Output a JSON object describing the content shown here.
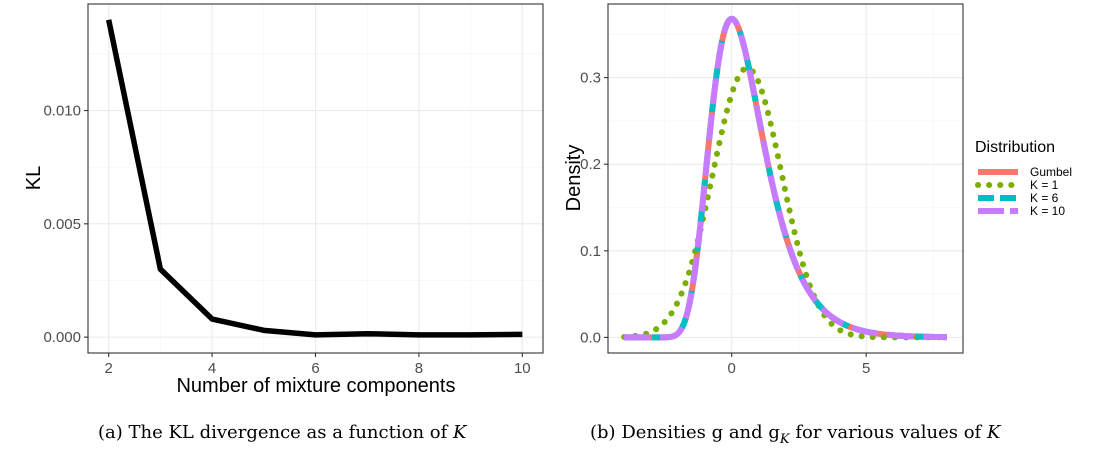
{
  "chart_data": [
    {
      "type": "line",
      "title": "",
      "xlabel": "Number of mixture components",
      "ylabel": "KL",
      "xlim": [
        1.6,
        10.4
      ],
      "ylim": [
        -0.0007,
        0.0147
      ],
      "x_ticks": [
        2,
        4,
        6,
        8,
        10
      ],
      "x_tick_labels": [
        "2",
        "4",
        "6",
        "8",
        "10"
      ],
      "y_ticks": [
        0.0,
        0.005,
        0.01
      ],
      "y_tick_labels": [
        "0.000",
        "0.005",
        "0.010"
      ],
      "grid": true,
      "series": [
        {
          "x": [
            2,
            3,
            4,
            5,
            6,
            7,
            8,
            9,
            10
          ],
          "y": [
            0.014,
            0.003,
            0.0008,
            0.0003,
            0.0001,
            0.00015,
            0.0001,
            0.0001,
            0.00012
          ],
          "color": "#000000"
        }
      ],
      "caption_label": "(a)",
      "caption_text": "The KL divergence as a function of",
      "caption_var": "K"
    },
    {
      "type": "line",
      "title": "",
      "xlabel": "",
      "ylabel": "Density",
      "xlim": [
        -4.6,
        8.6
      ],
      "ylim": [
        -0.018,
        0.385
      ],
      "x_ticks": [
        0,
        5
      ],
      "x_tick_labels": [
        "0",
        "5"
      ],
      "y_ticks": [
        0.0,
        0.1,
        0.2,
        0.3
      ],
      "y_tick_labels": [
        "0.0",
        "0.1",
        "0.2",
        "0.3"
      ],
      "grid": true,
      "x_range": [
        -4,
        8
      ],
      "legend": {
        "title": "Distribution",
        "position": "right",
        "entries": [
          {
            "label": "Gumbel",
            "color": "#F8766D",
            "dash": "solid"
          },
          {
            "label": "K = 1",
            "color": "#7CAE00",
            "dash": "dotted"
          },
          {
            "label": "K = 6",
            "color": "#00BFC4",
            "dash": "dashed"
          },
          {
            "label": "K = 10",
            "color": "#C77CFF",
            "dash": "longdash"
          }
        ]
      },
      "series": [
        {
          "name": "Gumbel",
          "kind": "gumbel",
          "location": 0,
          "scale": 1,
          "color": "#F8766D"
        },
        {
          "name": "K = 1",
          "kind": "normal",
          "mean": 0.5772,
          "sd": 1.2825,
          "color": "#7CAE00"
        },
        {
          "name": "K = 6",
          "kind": "gumbel",
          "location": 0,
          "scale": 1,
          "color": "#00BFC4"
        },
        {
          "name": "K = 10",
          "kind": "gumbel",
          "location": 0,
          "scale": 1,
          "color": "#C77CFF"
        }
      ],
      "caption_label": "(b)",
      "caption_text": "Densities g and g",
      "caption_sub": "K",
      "caption_tail": "for various values of",
      "caption_var": "K"
    }
  ]
}
